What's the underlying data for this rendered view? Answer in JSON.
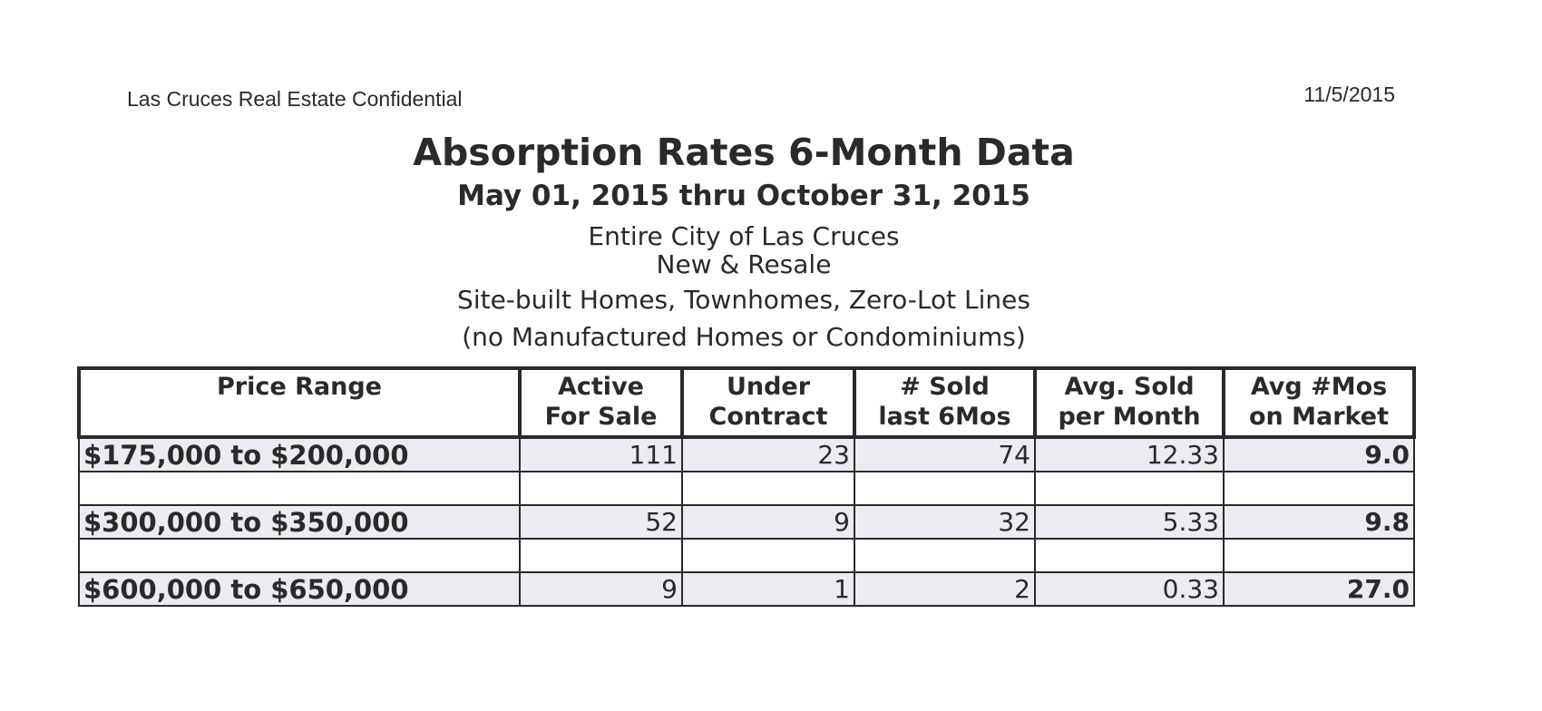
{
  "header": {
    "source": "Las Cruces Real Estate Confidential",
    "date": "11/5/2015"
  },
  "title": "Absorption Rates 6-Month Data",
  "subtitle": "May 01, 2015 thru October 31, 2015",
  "description": [
    "Entire City of Las Cruces",
    "New & Resale",
    "Site-built Homes, Townhomes, Zero-Lot Lines",
    "(no Manufactured Homes or Condominiums)"
  ],
  "table": {
    "columns": [
      [
        "Price Range"
      ],
      [
        "Active",
        "For Sale"
      ],
      [
        "Under",
        "Contract"
      ],
      [
        "# Sold",
        "last 6Mos"
      ],
      [
        "Avg. Sold",
        "per Month"
      ],
      [
        "Avg #Mos",
        "on Market"
      ]
    ],
    "rows": [
      [
        "$175,000 to $200,000",
        "111",
        "23",
        "74",
        "12.33",
        "9.0"
      ],
      [
        "$300,000 to $350,000",
        "52",
        "9",
        "32",
        "5.33",
        "9.8"
      ],
      [
        "$600,000 to $650,000",
        "9",
        "1",
        "2",
        "0.33",
        "27.0"
      ]
    ]
  }
}
